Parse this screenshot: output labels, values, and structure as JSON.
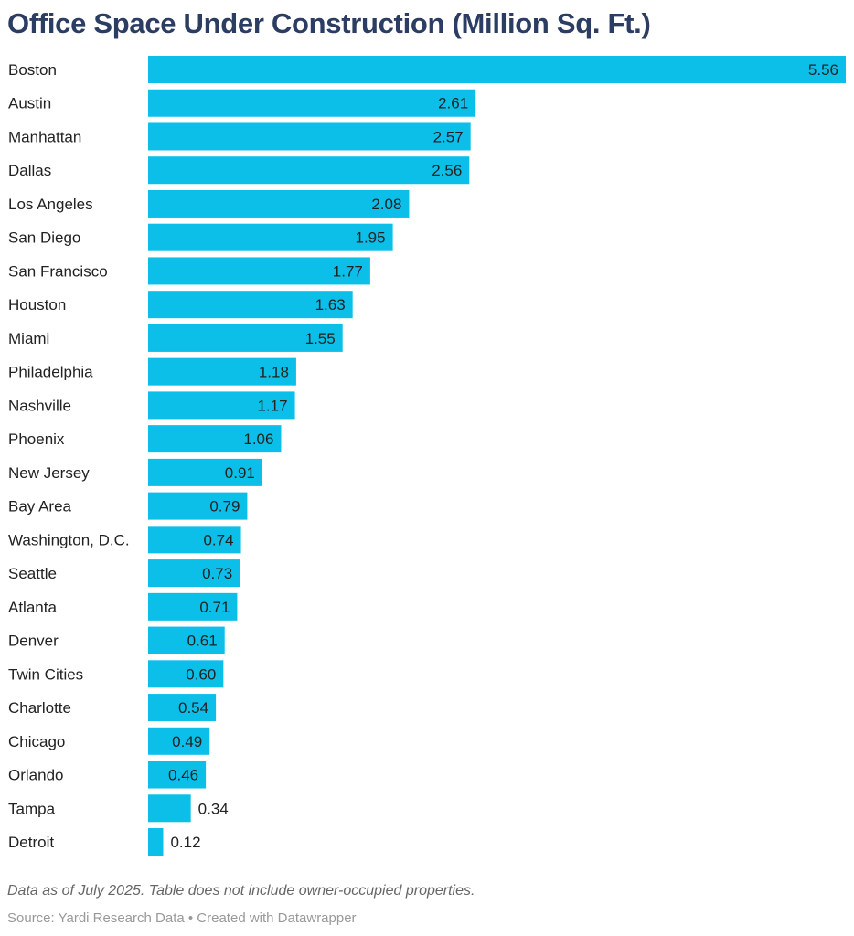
{
  "chart_data": {
    "type": "bar",
    "orientation": "horizontal",
    "title": "Office Space Under Construction (Million Sq. Ft.)",
    "categories": [
      "Boston",
      "Austin",
      "Manhattan",
      "Dallas",
      "Los Angeles",
      "San Diego",
      "San Francisco",
      "Houston",
      "Miami",
      "Philadelphia",
      "Nashville",
      "Phoenix",
      "New Jersey",
      "Bay Area",
      "Washington, D.C.",
      "Seattle",
      "Atlanta",
      "Denver",
      "Twin Cities",
      "Charlotte",
      "Chicago",
      "Orlando",
      "Tampa",
      "Detroit"
    ],
    "values": [
      5.56,
      2.61,
      2.57,
      2.56,
      2.08,
      1.95,
      1.77,
      1.63,
      1.55,
      1.18,
      1.17,
      1.06,
      0.91,
      0.79,
      0.74,
      0.73,
      0.71,
      0.61,
      0.6,
      0.54,
      0.49,
      0.46,
      0.34,
      0.12
    ],
    "value_labels": [
      "5.56",
      "2.61",
      "2.57",
      "2.56",
      "2.08",
      "1.95",
      "1.77",
      "1.63",
      "1.55",
      "1.18",
      "1.17",
      "1.06",
      "0.91",
      "0.79",
      "0.74",
      "0.73",
      "0.71",
      "0.61",
      "0.60",
      "0.54",
      "0.49",
      "0.46",
      "0.34",
      "0.12"
    ],
    "xlim": [
      0,
      5.56
    ],
    "grid": false,
    "bar_color": "#0cbfe9",
    "title_color": "#2c3d63"
  },
  "notes": "Data as of July 2025. Table does not include owner-occupied properties.",
  "source": "Source: Yardi Research Data • Created with Datawrapper"
}
